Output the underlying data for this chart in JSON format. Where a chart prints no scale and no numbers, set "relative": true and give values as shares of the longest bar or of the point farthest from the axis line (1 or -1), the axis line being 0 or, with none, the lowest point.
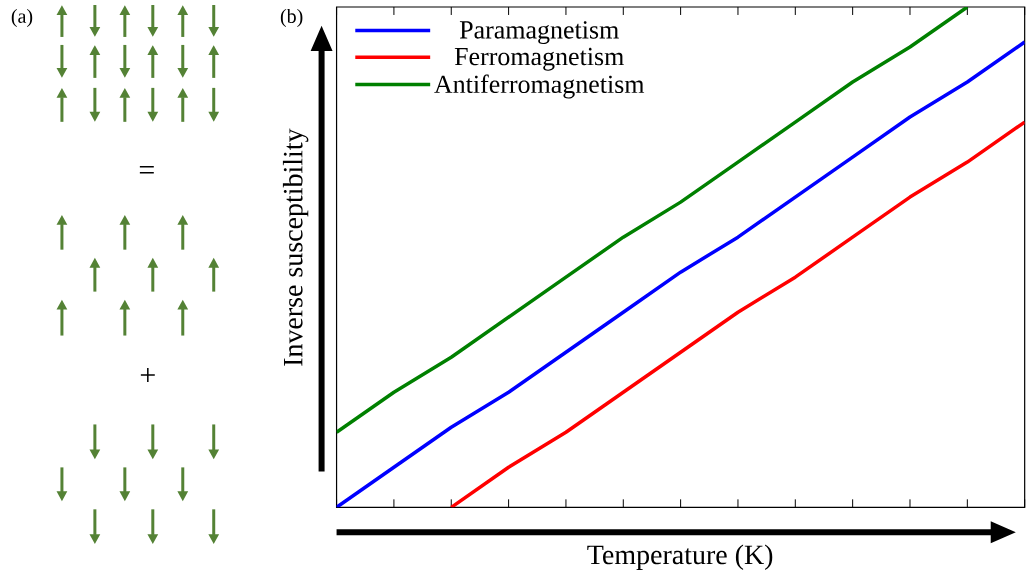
{
  "chart_data": {
    "type": "line",
    "relative": true,
    "xlabel": "Temperature (K)",
    "ylabel": "Inverse susceptibility",
    "categories": [
      null,
      null,
      null,
      null,
      null,
      null,
      null,
      null,
      null,
      null,
      null,
      null,
      null
    ],
    "series": [
      {
        "name": "Paramagnetism",
        "color": "#0000ff",
        "values": [
          0,
          0.08,
          0.16,
          0.23,
          0.31,
          0.39,
          0.47,
          0.54,
          0.62,
          0.7,
          0.78,
          0.85,
          0.93
        ]
      },
      {
        "name": "Ferromagnetism",
        "color": "#ff0000",
        "values": [
          null,
          null,
          0,
          0.08,
          0.15,
          0.23,
          0.31,
          0.39,
          0.46,
          0.54,
          0.62,
          0.69,
          0.77
        ]
      },
      {
        "name": "Antiferromagnetism",
        "color": "#008000",
        "values": [
          0.15,
          0.23,
          0.3,
          0.38,
          0.46,
          0.54,
          0.61,
          0.69,
          0.77,
          0.85,
          0.92,
          1.0,
          null
        ]
      }
    ],
    "legend": "top left",
    "line_style": "solid",
    "marker": "none",
    "grid": false,
    "annotations": [
      "(a)",
      "(b)",
      "=",
      "+"
    ]
  }
}
